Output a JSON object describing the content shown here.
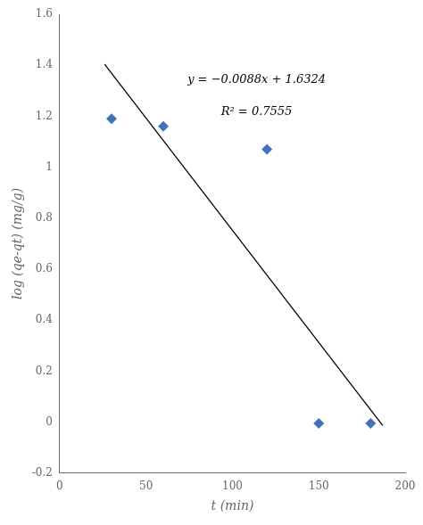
{
  "chart_data": {
    "type": "scatter",
    "x_label": "t (min)",
    "y_label": "log (qe-qt) (mg/g)",
    "annotations": [
      "y = −0.0088x + 1.6324",
      "R² = 0.7555"
    ],
    "series": [
      {
        "type": "scatter",
        "x": [
          30,
          60,
          120,
          150,
          180
        ],
        "values": [
          1.19,
          1.16,
          1.07,
          -0.005,
          -0.005
        ],
        "color": "#4472b8",
        "marker": "diamond"
      },
      {
        "type": "line",
        "x": [
          26,
          187
        ],
        "values": [
          1.4036,
          -0.0132
        ],
        "color": "#000000"
      }
    ],
    "xlim": [
      0,
      200
    ],
    "xticks": [
      0,
      50,
      100,
      150,
      200
    ],
    "ylim": [
      -0.2,
      1.6
    ],
    "yticks": [
      -0.2,
      0,
      0.2,
      0.4,
      0.6,
      0.8,
      1,
      1.2,
      1.4,
      1.6
    ],
    "grid": false
  }
}
